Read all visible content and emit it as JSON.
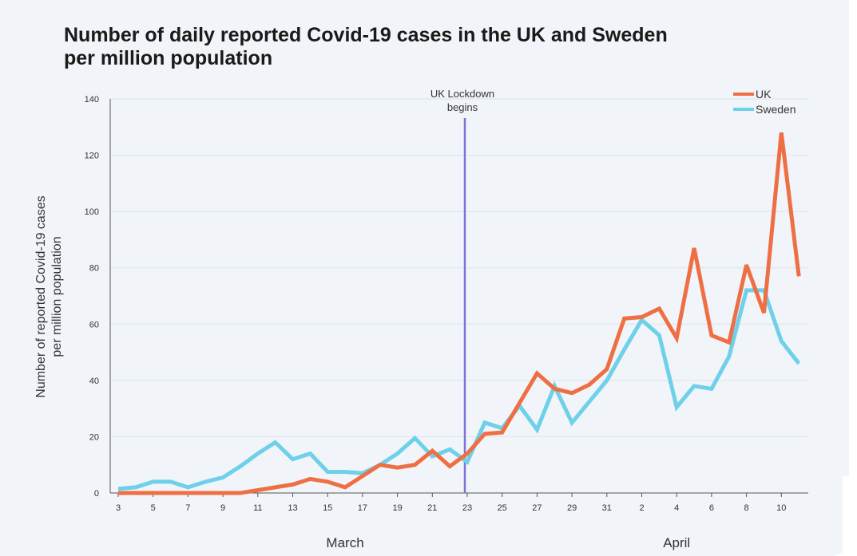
{
  "chart_data": {
    "type": "line",
    "title_line1": "Number of daily reported Covid-19 cases in the UK and Sweden",
    "title_line2": "per million population",
    "ylabel_line1": "Number of reported Covid-19 cases",
    "ylabel_line2": "per million population",
    "xlabel": "",
    "ylim": [
      0,
      140
    ],
    "yticks": [
      0,
      20,
      40,
      60,
      80,
      100,
      120,
      140
    ],
    "grid": true,
    "legend_position": "top-right",
    "x_days": [
      "3",
      "4",
      "5",
      "6",
      "7",
      "8",
      "9",
      "10",
      "11",
      "12",
      "13",
      "14",
      "15",
      "16",
      "17",
      "18",
      "19",
      "20",
      "21",
      "22",
      "23",
      "24",
      "25",
      "26",
      "27",
      "28",
      "29",
      "30",
      "31",
      "1",
      "2",
      "3",
      "4",
      "5",
      "6",
      "7",
      "8",
      "9",
      "10",
      "11"
    ],
    "x_tick_labels": [
      "3",
      "5",
      "7",
      "9",
      "11",
      "13",
      "15",
      "17",
      "19",
      "21",
      "23",
      "25",
      "27",
      "29",
      "31",
      "2",
      "4",
      "6",
      "8",
      "10"
    ],
    "month_labels": [
      {
        "label": "March",
        "center_day_index": 13
      },
      {
        "label": "April",
        "center_day_index": 32
      }
    ],
    "series": [
      {
        "name": "UK",
        "color": "#ef6f45",
        "values": [
          0,
          0,
          0,
          0,
          0,
          0,
          0,
          0,
          1,
          2,
          3,
          5,
          4,
          2,
          6,
          10,
          9,
          10,
          15,
          9.5,
          14,
          21,
          21.5,
          32,
          42.5,
          37,
          35.5,
          38.5,
          44,
          62,
          62.5,
          65.5,
          55,
          87,
          56,
          53.5,
          81,
          64,
          128,
          77
        ]
      },
      {
        "name": "Sweden",
        "color": "#6fd0ea",
        "values": [
          1.5,
          2,
          4,
          4,
          2,
          4,
          5.5,
          9.5,
          14,
          18,
          12,
          14,
          7.5,
          7.5,
          7,
          10,
          14,
          19.5,
          13,
          15.5,
          11,
          25,
          23,
          31,
          22.5,
          38,
          25,
          32.5,
          40,
          51,
          61.5,
          56,
          30.5,
          38,
          37,
          48.5,
          72,
          72,
          54,
          46
        ]
      }
    ],
    "annotations": [
      {
        "text_line1": "UK Lockdown",
        "text_line2": "begins",
        "x_day_index": 20,
        "color": "#7b72d9"
      }
    ]
  }
}
